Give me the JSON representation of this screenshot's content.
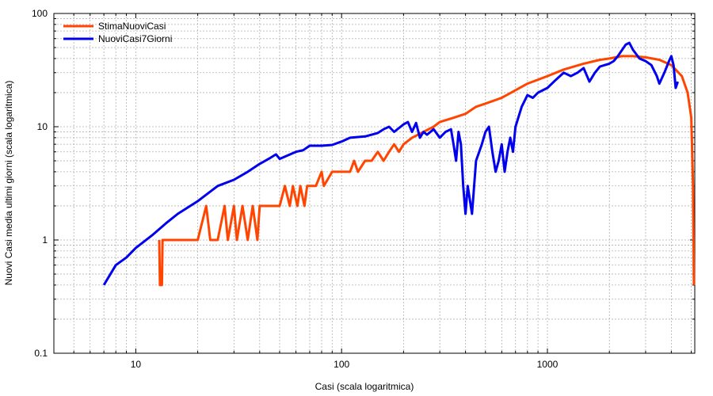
{
  "chart_data": {
    "type": "line",
    "title": "",
    "xlabel": "Casi (scala logaritmica)",
    "ylabel": "Nuovi Casi media ultimi giorni (scala logaritmica)",
    "xscale": "log",
    "yscale": "log",
    "xlim": [
      4,
      5200
    ],
    "ylim": [
      0.1,
      100
    ],
    "x_ticks": [
      {
        "value": 10,
        "label": "10"
      },
      {
        "value": 100,
        "label": "100"
      },
      {
        "value": 1000,
        "label": "1000"
      }
    ],
    "y_ticks": [
      {
        "value": 0.1,
        "label": "0.1"
      },
      {
        "value": 1,
        "label": "1"
      },
      {
        "value": 10,
        "label": "10"
      },
      {
        "value": 100,
        "label": "100"
      }
    ],
    "grid": true,
    "legend_position": "top-left",
    "series": [
      {
        "name": "StimaNuoviCasi",
        "color": "#ff4500",
        "points": [
          [
            13,
            1
          ],
          [
            13.1,
            0.4
          ],
          [
            13.4,
            0.4
          ],
          [
            13.5,
            1
          ],
          [
            15,
            1
          ],
          [
            17,
            1
          ],
          [
            19,
            1
          ],
          [
            20,
            1
          ],
          [
            22,
            2
          ],
          [
            23,
            1
          ],
          [
            24,
            1
          ],
          [
            25,
            1
          ],
          [
            27,
            2
          ],
          [
            28,
            1
          ],
          [
            30,
            2
          ],
          [
            31,
            1
          ],
          [
            33,
            2
          ],
          [
            35,
            1
          ],
          [
            37,
            2
          ],
          [
            39,
            1
          ],
          [
            40,
            2
          ],
          [
            45,
            2
          ],
          [
            50,
            2
          ],
          [
            53,
            3
          ],
          [
            56,
            2
          ],
          [
            58,
            3
          ],
          [
            61,
            2
          ],
          [
            63,
            3
          ],
          [
            66,
            2
          ],
          [
            68,
            3
          ],
          [
            75,
            3
          ],
          [
            80,
            4
          ],
          [
            82,
            3
          ],
          [
            90,
            4
          ],
          [
            100,
            4
          ],
          [
            110,
            4
          ],
          [
            115,
            5
          ],
          [
            120,
            4
          ],
          [
            130,
            5
          ],
          [
            140,
            5
          ],
          [
            150,
            6
          ],
          [
            160,
            5
          ],
          [
            170,
            6
          ],
          [
            180,
            7
          ],
          [
            190,
            6
          ],
          [
            200,
            7
          ],
          [
            220,
            8
          ],
          [
            250,
            9
          ],
          [
            280,
            10
          ],
          [
            300,
            11
          ],
          [
            350,
            12
          ],
          [
            400,
            13
          ],
          [
            450,
            15
          ],
          [
            500,
            16
          ],
          [
            600,
            18
          ],
          [
            700,
            21
          ],
          [
            800,
            24
          ],
          [
            1000,
            28
          ],
          [
            1200,
            32
          ],
          [
            1500,
            36
          ],
          [
            1800,
            39
          ],
          [
            2000,
            40
          ],
          [
            2300,
            42
          ],
          [
            2600,
            42
          ],
          [
            3000,
            41
          ],
          [
            3500,
            39
          ],
          [
            4000,
            35
          ],
          [
            4500,
            28
          ],
          [
            4800,
            20
          ],
          [
            5000,
            12
          ],
          [
            5100,
            3
          ],
          [
            5150,
            0.4
          ]
        ]
      },
      {
        "name": "NuoviCasi7Giorni",
        "color": "#0000ee",
        "points": [
          [
            7,
            0.4
          ],
          [
            8,
            0.6
          ],
          [
            9,
            0.7
          ],
          [
            10,
            0.85
          ],
          [
            12,
            1.1
          ],
          [
            14,
            1.4
          ],
          [
            16,
            1.7
          ],
          [
            20,
            2.2
          ],
          [
            25,
            3
          ],
          [
            30,
            3.4
          ],
          [
            35,
            4
          ],
          [
            40,
            4.7
          ],
          [
            45,
            5.3
          ],
          [
            48,
            5.7
          ],
          [
            50,
            5.2
          ],
          [
            55,
            5.6
          ],
          [
            60,
            6
          ],
          [
            65,
            6.2
          ],
          [
            70,
            6.8
          ],
          [
            80,
            6.8
          ],
          [
            90,
            6.9
          ],
          [
            100,
            7.4
          ],
          [
            110,
            8
          ],
          [
            130,
            8.2
          ],
          [
            150,
            8.8
          ],
          [
            160,
            9.5
          ],
          [
            170,
            10
          ],
          [
            180,
            9
          ],
          [
            200,
            10.5
          ],
          [
            210,
            11
          ],
          [
            220,
            9
          ],
          [
            230,
            10.8
          ],
          [
            240,
            8
          ],
          [
            250,
            9
          ],
          [
            260,
            8.5
          ],
          [
            280,
            9.5
          ],
          [
            300,
            8
          ],
          [
            320,
            9
          ],
          [
            340,
            9.5
          ],
          [
            350,
            7
          ],
          [
            360,
            5
          ],
          [
            370,
            9
          ],
          [
            380,
            7
          ],
          [
            390,
            3
          ],
          [
            400,
            1.7
          ],
          [
            410,
            3
          ],
          [
            430,
            1.7
          ],
          [
            450,
            5
          ],
          [
            480,
            7
          ],
          [
            500,
            9
          ],
          [
            520,
            10
          ],
          [
            540,
            6
          ],
          [
            560,
            4
          ],
          [
            580,
            5
          ],
          [
            600,
            7
          ],
          [
            620,
            4
          ],
          [
            640,
            6
          ],
          [
            660,
            8
          ],
          [
            680,
            6
          ],
          [
            700,
            10
          ],
          [
            750,
            15
          ],
          [
            800,
            19
          ],
          [
            850,
            18
          ],
          [
            900,
            20
          ],
          [
            1000,
            22
          ],
          [
            1100,
            26
          ],
          [
            1200,
            30
          ],
          [
            1300,
            28
          ],
          [
            1400,
            30
          ],
          [
            1500,
            33
          ],
          [
            1600,
            25
          ],
          [
            1700,
            30
          ],
          [
            1800,
            34
          ],
          [
            2000,
            36
          ],
          [
            2100,
            38
          ],
          [
            2200,
            42
          ],
          [
            2400,
            53
          ],
          [
            2500,
            55
          ],
          [
            2600,
            48
          ],
          [
            2800,
            40
          ],
          [
            3000,
            38
          ],
          [
            3200,
            35
          ],
          [
            3400,
            28
          ],
          [
            3500,
            24
          ],
          [
            3700,
            30
          ],
          [
            3900,
            38
          ],
          [
            4000,
            42
          ],
          [
            4100,
            35
          ],
          [
            4200,
            22
          ],
          [
            4300,
            25
          ]
        ]
      }
    ]
  }
}
